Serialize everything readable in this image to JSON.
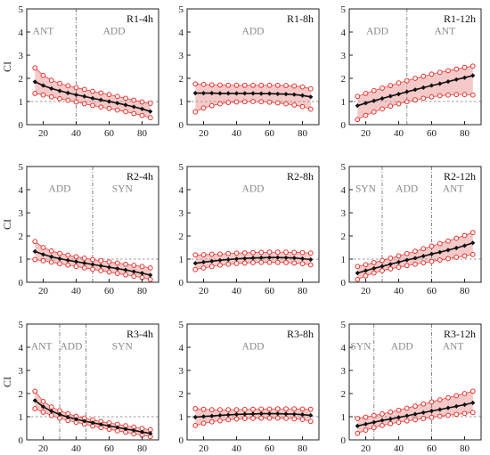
{
  "chart_data": [
    {
      "type": "line",
      "title": "R1-4h",
      "ylabel": "CI",
      "xlim": [
        10,
        90
      ],
      "ylim": [
        0,
        5
      ],
      "x_ticks": [
        20,
        40,
        60,
        80
      ],
      "y_ticks": [
        0,
        1,
        2,
        3,
        4,
        5
      ],
      "reference_y": 1,
      "dividers": [
        40
      ],
      "regions": [
        {
          "label": "ANT",
          "x": 20
        },
        {
          "label": "ADD",
          "x": 63
        }
      ],
      "x": [
        15,
        20,
        25,
        30,
        35,
        40,
        45,
        50,
        55,
        60,
        65,
        70,
        75,
        80,
        85
      ],
      "mean": [
        1.85,
        1.69,
        1.56,
        1.46,
        1.37,
        1.29,
        1.22,
        1.14,
        1.07,
        1.0,
        0.93,
        0.85,
        0.77,
        0.68,
        0.57
      ],
      "upper": [
        2.45,
        2.13,
        1.92,
        1.78,
        1.68,
        1.6,
        1.52,
        1.44,
        1.37,
        1.3,
        1.22,
        1.14,
        1.06,
        0.98,
        0.92
      ],
      "lower": [
        1.35,
        1.28,
        1.2,
        1.12,
        1.05,
        0.98,
        0.9,
        0.83,
        0.76,
        0.7,
        0.63,
        0.56,
        0.48,
        0.4,
        0.3
      ]
    },
    {
      "type": "line",
      "title": "R1-8h",
      "ylabel": "",
      "xlim": [
        10,
        90
      ],
      "ylim": [
        0,
        5
      ],
      "x_ticks": [
        20,
        40,
        60,
        80
      ],
      "y_ticks": [
        0,
        1,
        2,
        3,
        4,
        5
      ],
      "reference_y": 1,
      "dividers": [],
      "regions": [
        {
          "label": "ADD",
          "x": 50
        }
      ],
      "x": [
        15,
        20,
        25,
        30,
        35,
        40,
        45,
        50,
        55,
        60,
        65,
        70,
        75,
        80,
        85
      ],
      "mean": [
        1.36,
        1.36,
        1.36,
        1.35,
        1.35,
        1.35,
        1.35,
        1.35,
        1.34,
        1.34,
        1.33,
        1.32,
        1.3,
        1.26,
        1.2
      ],
      "upper": [
        1.76,
        1.74,
        1.72,
        1.71,
        1.7,
        1.7,
        1.7,
        1.7,
        1.7,
        1.7,
        1.7,
        1.69,
        1.67,
        1.63,
        1.55
      ],
      "lower": [
        0.55,
        0.72,
        0.82,
        0.9,
        0.96,
        0.98,
        0.99,
        1.0,
        0.99,
        0.97,
        0.94,
        0.9,
        0.85,
        0.78,
        0.67
      ]
    },
    {
      "type": "line",
      "title": "R1-12h",
      "ylabel": "",
      "xlim": [
        10,
        90
      ],
      "ylim": [
        0,
        5
      ],
      "x_ticks": [
        20,
        40,
        60,
        80
      ],
      "y_ticks": [
        0,
        1,
        2,
        3,
        4,
        5
      ],
      "reference_y": 1,
      "dividers": [
        45
      ],
      "regions": [
        {
          "label": "ADD",
          "x": 27
        },
        {
          "label": "ANT",
          "x": 68
        }
      ],
      "x": [
        15,
        20,
        25,
        30,
        35,
        40,
        45,
        50,
        55,
        60,
        65,
        70,
        75,
        80,
        85
      ],
      "mean": [
        0.82,
        0.93,
        1.03,
        1.13,
        1.23,
        1.32,
        1.42,
        1.51,
        1.6,
        1.69,
        1.77,
        1.86,
        1.95,
        2.03,
        2.12
      ],
      "upper": [
        1.22,
        1.35,
        1.47,
        1.58,
        1.69,
        1.8,
        1.9,
        2.0,
        2.09,
        2.18,
        2.26,
        2.33,
        2.4,
        2.47,
        2.53
      ],
      "lower": [
        0.22,
        0.4,
        0.55,
        0.68,
        0.8,
        0.9,
        0.99,
        1.07,
        1.14,
        1.2,
        1.25,
        1.28,
        1.3,
        1.3,
        1.28
      ]
    },
    {
      "type": "line",
      "title": "R2-4h",
      "ylabel": "CI",
      "xlim": [
        10,
        90
      ],
      "ylim": [
        0,
        5
      ],
      "x_ticks": [
        20,
        40,
        60,
        80
      ],
      "y_ticks": [
        0,
        1,
        2,
        3,
        4,
        5
      ],
      "reference_y": 1,
      "dividers": [
        50
      ],
      "regions": [
        {
          "label": "ADD",
          "x": 30
        },
        {
          "label": "SYN",
          "x": 68
        }
      ],
      "x": [
        15,
        20,
        25,
        30,
        35,
        40,
        45,
        50,
        55,
        60,
        65,
        70,
        75,
        80,
        85
      ],
      "mean": [
        1.33,
        1.2,
        1.1,
        1.02,
        0.95,
        0.89,
        0.83,
        0.77,
        0.71,
        0.65,
        0.59,
        0.53,
        0.46,
        0.39,
        0.31
      ],
      "upper": [
        1.76,
        1.5,
        1.35,
        1.25,
        1.17,
        1.1,
        1.04,
        0.98,
        0.93,
        0.88,
        0.83,
        0.78,
        0.73,
        0.68,
        0.62
      ],
      "lower": [
        0.98,
        0.93,
        0.87,
        0.8,
        0.74,
        0.68,
        0.62,
        0.56,
        0.5,
        0.44,
        0.38,
        0.32,
        0.26,
        0.2,
        0.12
      ]
    },
    {
      "type": "line",
      "title": "R2-8h",
      "ylabel": "",
      "xlim": [
        10,
        90
      ],
      "ylim": [
        0,
        5
      ],
      "x_ticks": [
        20,
        40,
        60,
        80
      ],
      "y_ticks": [
        0,
        1,
        2,
        3,
        4,
        5
      ],
      "reference_y": 1,
      "dividers": [],
      "regions": [
        {
          "label": "ADD",
          "x": 50
        }
      ],
      "x": [
        15,
        20,
        25,
        30,
        35,
        40,
        45,
        50,
        55,
        60,
        65,
        70,
        75,
        80,
        85
      ],
      "mean": [
        0.82,
        0.87,
        0.91,
        0.95,
        0.98,
        1.01,
        1.03,
        1.05,
        1.06,
        1.07,
        1.07,
        1.06,
        1.05,
        1.02,
        0.98
      ],
      "upper": [
        1.18,
        1.19,
        1.21,
        1.22,
        1.24,
        1.26,
        1.27,
        1.28,
        1.29,
        1.3,
        1.3,
        1.3,
        1.29,
        1.28,
        1.26
      ],
      "lower": [
        0.55,
        0.62,
        0.68,
        0.74,
        0.78,
        0.81,
        0.83,
        0.85,
        0.86,
        0.86,
        0.86,
        0.85,
        0.83,
        0.8,
        0.75
      ]
    },
    {
      "type": "line",
      "title": "R2-12h",
      "ylabel": "",
      "xlim": [
        10,
        90
      ],
      "ylim": [
        0,
        5
      ],
      "x_ticks": [
        20,
        40,
        60,
        80
      ],
      "y_ticks": [
        0,
        1,
        2,
        3,
        4,
        5
      ],
      "reference_y": 1,
      "dividers": [
        30,
        60
      ],
      "regions": [
        {
          "label": "SYN",
          "x": 20
        },
        {
          "label": "ADD",
          "x": 45
        },
        {
          "label": "ANT",
          "x": 73
        }
      ],
      "x": [
        15,
        20,
        25,
        30,
        35,
        40,
        45,
        50,
        55,
        60,
        65,
        70,
        75,
        80,
        85
      ],
      "mean": [
        0.4,
        0.5,
        0.6,
        0.69,
        0.78,
        0.87,
        0.96,
        1.04,
        1.13,
        1.22,
        1.3,
        1.39,
        1.48,
        1.58,
        1.7
      ],
      "upper": [
        0.68,
        0.76,
        0.85,
        0.94,
        1.04,
        1.14,
        1.24,
        1.34,
        1.45,
        1.56,
        1.67,
        1.78,
        1.9,
        2.02,
        2.15
      ],
      "lower": [
        0.12,
        0.28,
        0.4,
        0.5,
        0.58,
        0.65,
        0.72,
        0.78,
        0.84,
        0.9,
        0.96,
        1.02,
        1.08,
        1.14,
        1.2
      ]
    },
    {
      "type": "line",
      "title": "R3-4h",
      "ylabel": "CI",
      "xlim": [
        10,
        90
      ],
      "ylim": [
        0,
        5
      ],
      "x_ticks": [
        20,
        40,
        60,
        80
      ],
      "y_ticks": [
        0,
        1,
        2,
        3,
        4,
        5
      ],
      "reference_y": 1,
      "dividers": [
        30,
        46
      ],
      "regions": [
        {
          "label": "ANT",
          "x": 19
        },
        {
          "label": "ADD",
          "x": 37
        },
        {
          "label": "SYN",
          "x": 68
        }
      ],
      "x": [
        15,
        20,
        25,
        30,
        35,
        40,
        45,
        50,
        55,
        60,
        65,
        70,
        75,
        80,
        85
      ],
      "mean": [
        1.7,
        1.43,
        1.24,
        1.1,
        0.98,
        0.89,
        0.81,
        0.74,
        0.67,
        0.6,
        0.54,
        0.47,
        0.41,
        0.34,
        0.28
      ],
      "upper": [
        2.1,
        1.66,
        1.42,
        1.26,
        1.13,
        1.02,
        0.94,
        0.86,
        0.79,
        0.73,
        0.67,
        0.61,
        0.55,
        0.49,
        0.44
      ],
      "lower": [
        1.35,
        1.2,
        1.05,
        0.94,
        0.84,
        0.76,
        0.68,
        0.6,
        0.53,
        0.46,
        0.39,
        0.33,
        0.26,
        0.2,
        0.14
      ]
    },
    {
      "type": "line",
      "title": "R3-8h",
      "ylabel": "",
      "xlim": [
        10,
        90
      ],
      "ylim": [
        0,
        5
      ],
      "x_ticks": [
        20,
        40,
        60,
        80
      ],
      "y_ticks": [
        0,
        1,
        2,
        3,
        4,
        5
      ],
      "reference_y": 1,
      "dividers": [],
      "regions": [
        {
          "label": "ADD",
          "x": 50
        }
      ],
      "x": [
        15,
        20,
        25,
        30,
        35,
        40,
        45,
        50,
        55,
        60,
        65,
        70,
        75,
        80,
        85
      ],
      "mean": [
        0.98,
        1.01,
        1.03,
        1.06,
        1.08,
        1.1,
        1.11,
        1.12,
        1.13,
        1.13,
        1.13,
        1.12,
        1.11,
        1.09,
        1.06
      ],
      "upper": [
        1.35,
        1.32,
        1.3,
        1.3,
        1.3,
        1.3,
        1.31,
        1.32,
        1.33,
        1.33,
        1.34,
        1.34,
        1.34,
        1.33,
        1.32
      ],
      "lower": [
        0.62,
        0.72,
        0.78,
        0.83,
        0.87,
        0.9,
        0.92,
        0.93,
        0.94,
        0.94,
        0.94,
        0.93,
        0.91,
        0.88,
        0.8
      ]
    },
    {
      "type": "line",
      "title": "R3-12h",
      "ylabel": "",
      "xlim": [
        10,
        90
      ],
      "ylim": [
        0,
        5
      ],
      "x_ticks": [
        20,
        40,
        60,
        80
      ],
      "y_ticks": [
        0,
        1,
        2,
        3,
        4,
        5
      ],
      "reference_y": 1,
      "dividers": [
        25,
        60
      ],
      "regions": [
        {
          "label": "SYN",
          "x": 17
        },
        {
          "label": "ADD",
          "x": 42
        },
        {
          "label": "ANT",
          "x": 73
        }
      ],
      "x": [
        15,
        20,
        25,
        30,
        35,
        40,
        45,
        50,
        55,
        60,
        65,
        70,
        75,
        80,
        85
      ],
      "mean": [
        0.6,
        0.68,
        0.76,
        0.84,
        0.9,
        0.97,
        1.04,
        1.11,
        1.18,
        1.25,
        1.31,
        1.38,
        1.45,
        1.52,
        1.6
      ],
      "upper": [
        0.92,
        0.98,
        1.05,
        1.12,
        1.2,
        1.28,
        1.37,
        1.46,
        1.55,
        1.64,
        1.73,
        1.82,
        1.91,
        2.0,
        2.1
      ],
      "lower": [
        0.28,
        0.42,
        0.53,
        0.62,
        0.7,
        0.76,
        0.82,
        0.87,
        0.92,
        0.97,
        1.02,
        1.06,
        1.1,
        1.14,
        1.18
      ]
    }
  ],
  "colors": {
    "band_fill": "#f6c9c9",
    "bound_marker": "#e8302a",
    "mean_line": "#111111",
    "reference_line": "#9a9a9a",
    "divider_line": "#777777",
    "region_text": "#8a8a8a"
  }
}
